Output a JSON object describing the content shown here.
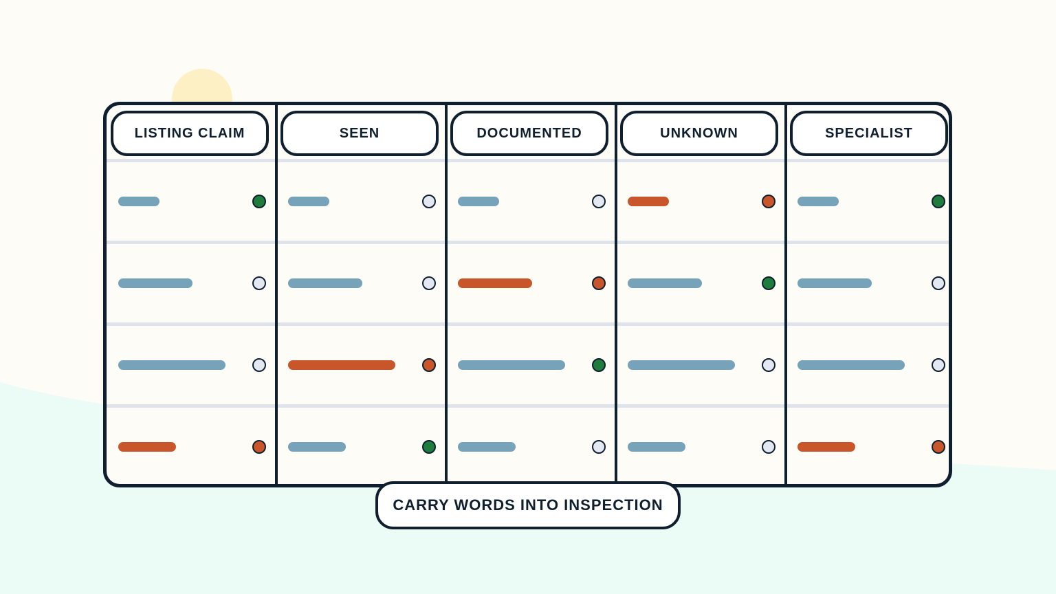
{
  "colors": {
    "background": "#fdfcf7",
    "ground": "#ebfbf5",
    "sun": "#fdf0c4",
    "outline": "#0f1f2e",
    "row_divider": "#dfe3ec",
    "bar_neutral": "#76a2ba",
    "bar_alert": "#c9552a",
    "dot_empty": "#e4e8f2",
    "dot_green": "#1e7c3d",
    "dot_red": "#c9552a"
  },
  "columns": [
    {
      "label": "LISTING CLAIM"
    },
    {
      "label": "SEEN"
    },
    {
      "label": "DOCUMENTED"
    },
    {
      "label": "UNKNOWN"
    },
    {
      "label": "SPECIALIST"
    }
  ],
  "bar_levels": [
    0.25,
    0.45,
    0.65,
    0.35
  ],
  "grid": [
    [
      {
        "bar": "neutral",
        "dot": "green"
      },
      {
        "bar": "neutral",
        "dot": "empty"
      },
      {
        "bar": "neutral",
        "dot": "empty"
      },
      {
        "bar": "alert",
        "dot": "red"
      },
      {
        "bar": "neutral",
        "dot": "green"
      }
    ],
    [
      {
        "bar": "neutral",
        "dot": "empty"
      },
      {
        "bar": "neutral",
        "dot": "empty"
      },
      {
        "bar": "alert",
        "dot": "red"
      },
      {
        "bar": "neutral",
        "dot": "green"
      },
      {
        "bar": "neutral",
        "dot": "empty"
      }
    ],
    [
      {
        "bar": "neutral",
        "dot": "empty"
      },
      {
        "bar": "alert",
        "dot": "red"
      },
      {
        "bar": "neutral",
        "dot": "green"
      },
      {
        "bar": "neutral",
        "dot": "empty"
      },
      {
        "bar": "neutral",
        "dot": "empty"
      }
    ],
    [
      {
        "bar": "alert",
        "dot": "red"
      },
      {
        "bar": "neutral",
        "dot": "green"
      },
      {
        "bar": "neutral",
        "dot": "empty"
      },
      {
        "bar": "neutral",
        "dot": "empty"
      },
      {
        "bar": "alert",
        "dot": "red"
      }
    ]
  ],
  "footer": {
    "label": "CARRY WORDS INTO INSPECTION"
  }
}
